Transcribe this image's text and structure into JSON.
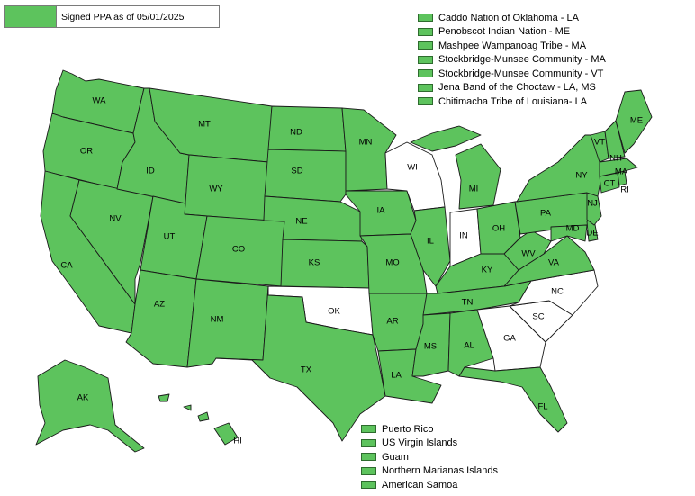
{
  "legend": {
    "label": "Signed PPA as of 05/01/2025",
    "color": "#5dc35d"
  },
  "tribes": [
    "Caddo Nation of Oklahoma - LA",
    "Penobscot Indian Nation - ME",
    "Mashpee Wampanoag Tribe - MA",
    "Stockbridge-Munsee Community - MA",
    "Stockbridge-Munsee Community - VT",
    "Jena Band of the Choctaw - LA, MS",
    "Chitimacha Tribe of Louisiana- LA"
  ],
  "territories": [
    "Puerto Rico",
    "US Virgin Islands",
    "Guam",
    "Northern Marianas Islands",
    "American Samoa"
  ],
  "colors": {
    "signed": "#5dc35d",
    "not_signed": "#ffffff"
  },
  "states": {
    "WA": {
      "label": "WA",
      "signed": true
    },
    "OR": {
      "label": "OR",
      "signed": true
    },
    "CA": {
      "label": "CA",
      "signed": true
    },
    "NV": {
      "label": "NV",
      "signed": true
    },
    "ID": {
      "label": "ID",
      "signed": true
    },
    "MT": {
      "label": "MT",
      "signed": true
    },
    "WY": {
      "label": "WY",
      "signed": true
    },
    "UT": {
      "label": "UT",
      "signed": true
    },
    "AZ": {
      "label": "AZ",
      "signed": true
    },
    "CO": {
      "label": "CO",
      "signed": true
    },
    "NM": {
      "label": "NM",
      "signed": true
    },
    "ND": {
      "label": "ND",
      "signed": true
    },
    "SD": {
      "label": "SD",
      "signed": true
    },
    "NE": {
      "label": "NE",
      "signed": true
    },
    "KS": {
      "label": "KS",
      "signed": true
    },
    "OK": {
      "label": "OK",
      "signed": false
    },
    "TX": {
      "label": "TX",
      "signed": true
    },
    "MN": {
      "label": "MN",
      "signed": true
    },
    "IA": {
      "label": "IA",
      "signed": true
    },
    "MO": {
      "label": "MO",
      "signed": true
    },
    "AR": {
      "label": "AR",
      "signed": true
    },
    "LA": {
      "label": "LA",
      "signed": true
    },
    "WI": {
      "label": "WI",
      "signed": false
    },
    "IL": {
      "label": "IL",
      "signed": true
    },
    "MI": {
      "label": "MI",
      "signed": true
    },
    "IN": {
      "label": "IN",
      "signed": false
    },
    "OH": {
      "label": "OH",
      "signed": true
    },
    "KY": {
      "label": "KY",
      "signed": true
    },
    "TN": {
      "label": "TN",
      "signed": true
    },
    "MS": {
      "label": "MS",
      "signed": true
    },
    "AL": {
      "label": "AL",
      "signed": true
    },
    "GA": {
      "label": "GA",
      "signed": false
    },
    "FL": {
      "label": "FL",
      "signed": true
    },
    "SC": {
      "label": "SC",
      "signed": false
    },
    "NC": {
      "label": "NC",
      "signed": false
    },
    "VA": {
      "label": "VA",
      "signed": true
    },
    "WV": {
      "label": "WV",
      "signed": true
    },
    "PA": {
      "label": "PA",
      "signed": true
    },
    "NY": {
      "label": "NY",
      "signed": true
    },
    "VT": {
      "label": "VT",
      "signed": true
    },
    "NH": {
      "label": "NH",
      "signed": true
    },
    "ME": {
      "label": "ME",
      "signed": true
    },
    "MA": {
      "label": "MA",
      "signed": true
    },
    "CT": {
      "label": "CT",
      "signed": true
    },
    "RI": {
      "label": "RI",
      "signed": true
    },
    "NJ": {
      "label": "NJ",
      "signed": true
    },
    "DE": {
      "label": "DE",
      "signed": true
    },
    "MD": {
      "label": "MD",
      "signed": true
    },
    "AK": {
      "label": "AK",
      "signed": true
    },
    "HI": {
      "label": "HI",
      "signed": true
    }
  }
}
